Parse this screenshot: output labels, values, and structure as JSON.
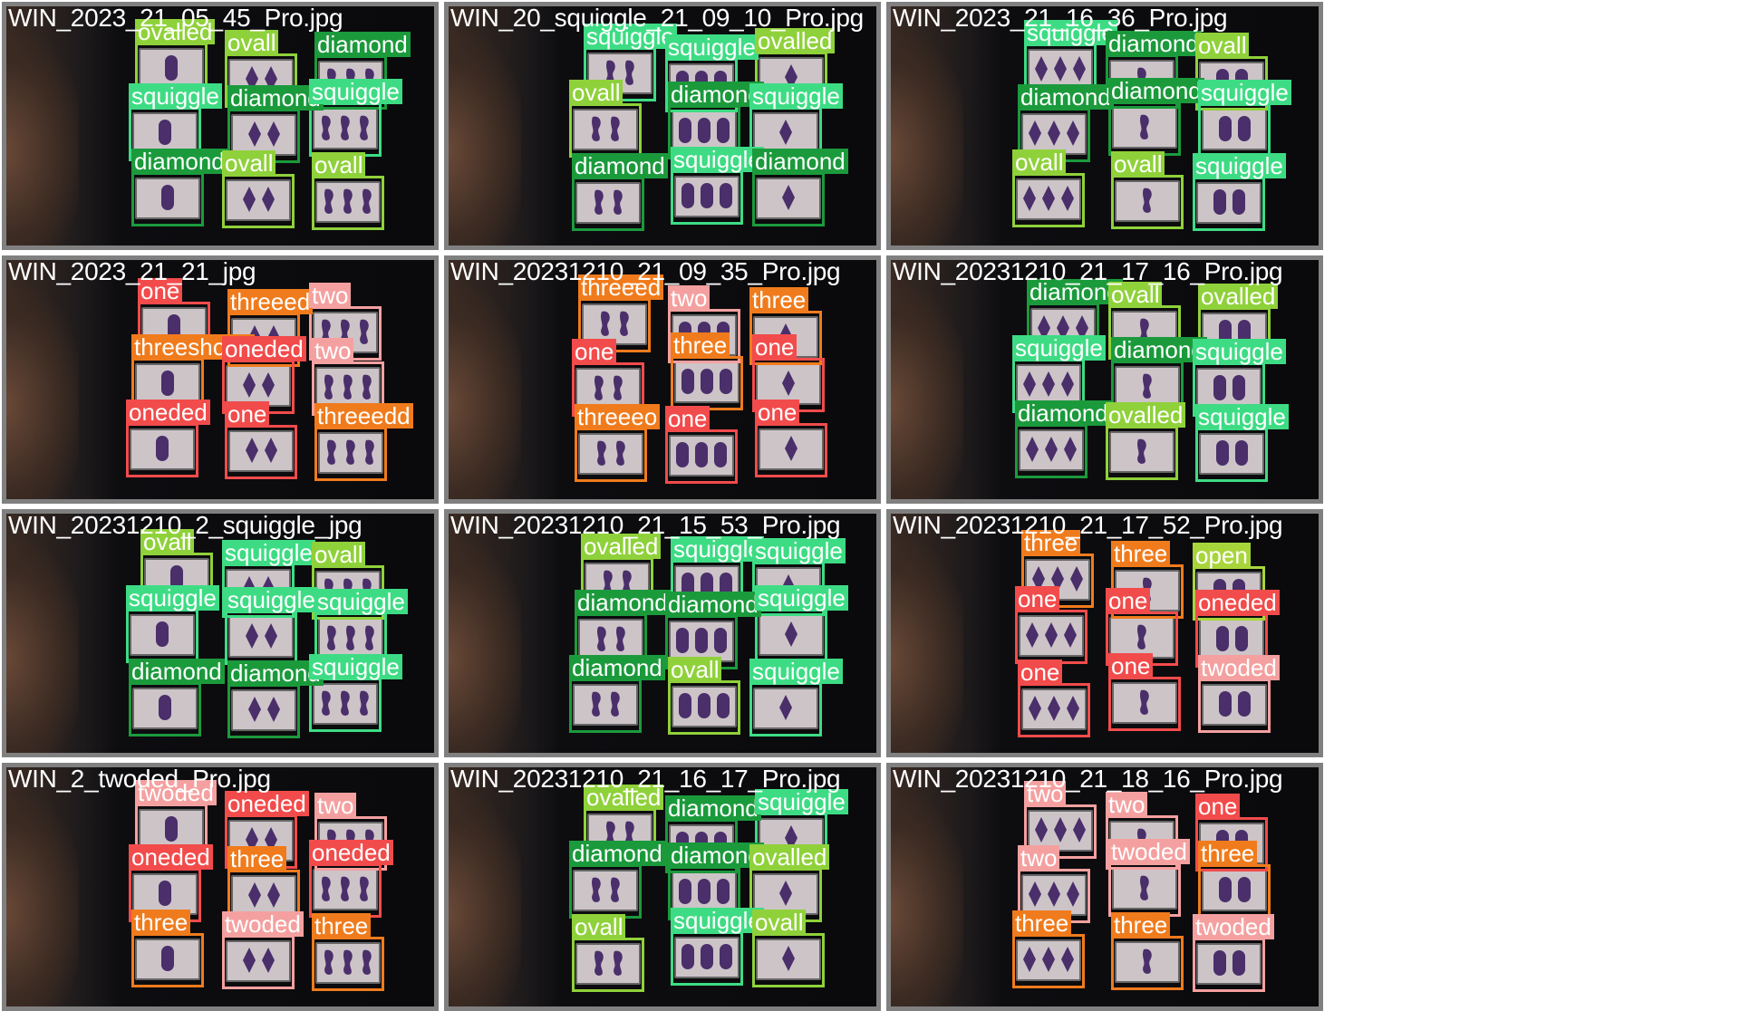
{
  "colors": {
    "squiggle": "#3ddc84",
    "diamond": "#1b9a3c",
    "oval": "#8fd13a",
    "one": "#f24b4b",
    "two": "#f5a0a0",
    "three": "#f07b1c",
    "open": "#a8d63a",
    "striped": "#f2a81c",
    "solid": "#2c8f38"
  },
  "tiles": [
    {
      "filename": "WIN_2023_21_05_45_Pro.jpg",
      "labels": [
        "ovalled",
        "ovall",
        "diamond",
        "squiggle",
        "diamond",
        "squiggle",
        "diamond",
        "ovall",
        "ovall"
      ]
    },
    {
      "filename": "WIN_20_squiggle_21_09_10_Pro.jpg",
      "labels": [
        "squiggle",
        "squiggle",
        "ovalled",
        "ovall",
        "diamond",
        "squiggle",
        "diamond",
        "squiggle",
        "diamond"
      ]
    },
    {
      "filename": "WIN_2023_21_16_36_Pro.jpg",
      "labels": [
        "squiggle",
        "diamond",
        "ovall",
        "diamond",
        "diamond",
        "squiggle",
        "ovall",
        "ovall",
        "squiggle"
      ]
    },
    {
      "filename": "WIN_2023_21_21_jpg",
      "labels": [
        "one",
        "threeed",
        "two",
        "threeshone",
        "oneded",
        "two",
        "oneded",
        "one",
        "threeedd"
      ]
    },
    {
      "filename": "WIN_20231210_21_09_35_Pro.jpg",
      "labels": [
        "threeed",
        "two",
        "three",
        "one",
        "three",
        "one",
        "threeeo",
        "one",
        "one"
      ]
    },
    {
      "filename": "WIN_20231210_21_17_16_Pro.jpg",
      "labels": [
        "diamond",
        "ovall",
        "ovalled",
        "squiggle",
        "diamond",
        "squiggle",
        "diamond",
        "ovalled",
        "squiggle"
      ]
    },
    {
      "filename": "WIN_20231210_2_squiggle_jpg",
      "labels": [
        "ovall",
        "squiggle",
        "ovall",
        "squiggle",
        "squiggle",
        "squiggle",
        "diamond",
        "diamond",
        "squiggle"
      ]
    },
    {
      "filename": "WIN_20231210_21_15_53_Pro.jpg",
      "labels": [
        "ovalled",
        "squiggle",
        "squiggle",
        "diamond",
        "diamond",
        "squiggle",
        "diamond",
        "ovall",
        "squiggle"
      ]
    },
    {
      "filename": "WIN_20231210_21_17_52_Pro.jpg",
      "labels": [
        "three",
        "three",
        "open",
        "one",
        "one",
        "oneded",
        "one",
        "one",
        "twoded"
      ]
    },
    {
      "filename": "WIN_2_twoded_Pro.jpg",
      "labels": [
        "twoded",
        "oneded",
        "two",
        "oneded",
        "three",
        "oneded",
        "three",
        "twoded",
        "three"
      ]
    },
    {
      "filename": "WIN_20231210_21_16_17_Pro.jpg",
      "labels": [
        "ovalled",
        "diamond",
        "squiggle",
        "diamond",
        "diamond",
        "ovalled",
        "ovall",
        "squiggle",
        "ovall"
      ]
    },
    {
      "filename": "WIN_20231210_21_18_16_Pro.jpg",
      "labels": [
        "two",
        "two",
        "one",
        "two",
        "twoded",
        "three",
        "three",
        "three",
        "twoded"
      ]
    }
  ]
}
